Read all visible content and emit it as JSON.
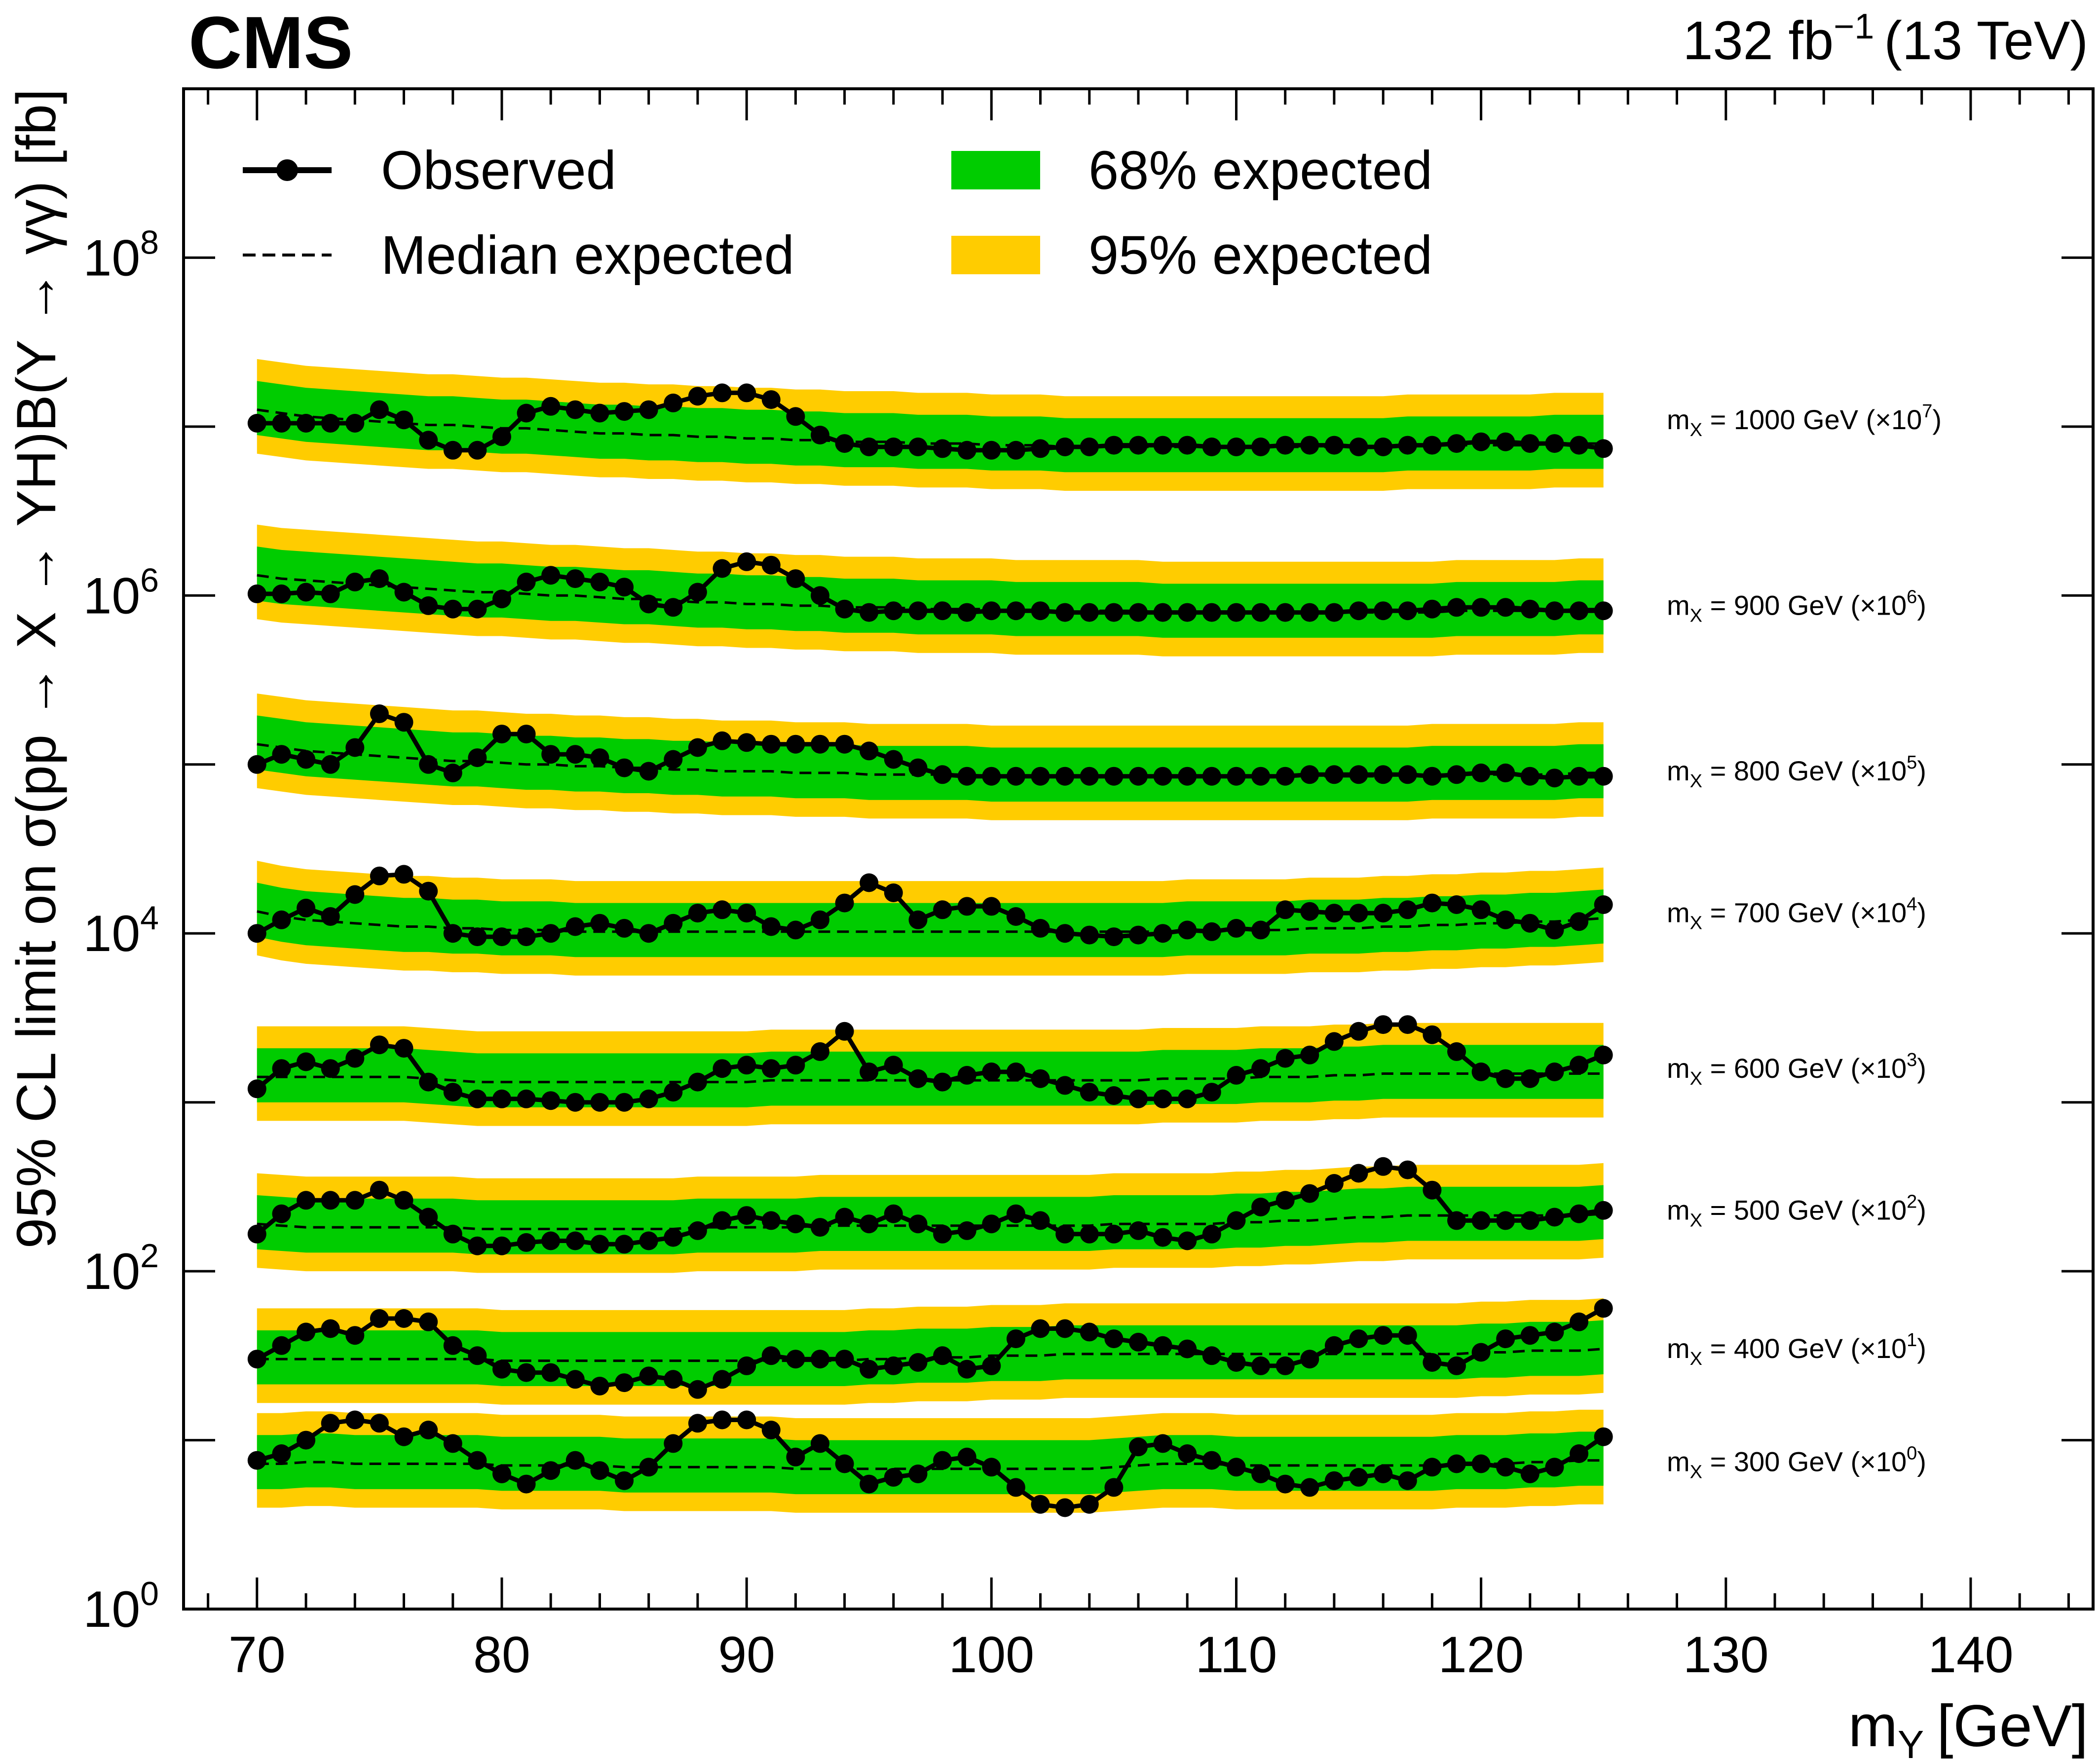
{
  "colors": {
    "band68": "#00cc00",
    "band95": "#ffcc00",
    "observed": "#000000",
    "expected": "#000000"
  },
  "chart_data": {
    "type": "line",
    "experiment": "CMS",
    "lumi_label": "132 fb",
    "lumi_exp": "−1",
    "energy_label": "(13 TeV)",
    "xlabel_main": "m",
    "xlabel_sub": "Y",
    "xlabel_unit": "[GeV]",
    "ylabel": "95% CL limit on σ(pp → X → YH)B(Y → γγ) [fb]",
    "xlim": [
      67,
      145
    ],
    "ylim_log10": [
      0,
      9
    ],
    "y_scale": "log",
    "x_ticks": [
      70,
      80,
      90,
      100,
      110,
      120,
      130,
      140
    ],
    "y_ticks": [
      {
        "base": "10",
        "exp": "0",
        "value": 0
      },
      {
        "base": "10",
        "exp": "2",
        "value": 2
      },
      {
        "base": "10",
        "exp": "4",
        "value": 4
      },
      {
        "base": "10",
        "exp": "6",
        "value": 6
      },
      {
        "base": "10",
        "exp": "8",
        "value": 8
      }
    ],
    "legend": {
      "position": "top-left",
      "observed": "Observed",
      "median": "Median expected",
      "band68": "68% expected",
      "band95": "95% expected"
    },
    "x_points": [
      70,
      71,
      72,
      73,
      74,
      75,
      76,
      77,
      78,
      79,
      80,
      81,
      82,
      83,
      84,
      85,
      86,
      87,
      88,
      89,
      90,
      91,
      92,
      93,
      94,
      95,
      96,
      97,
      98,
      99,
      100,
      101,
      102,
      103,
      104,
      105,
      106,
      107,
      108,
      109,
      110,
      111,
      112,
      113,
      114,
      115,
      116,
      117,
      118,
      119,
      120,
      121,
      122,
      123,
      124,
      125
    ],
    "series": [
      {
        "label_main": "m",
        "label_sub": "X",
        "label_rest": " = 1000 GeV (×10",
        "label_exp": "7",
        "label_close": ")",
        "label_log10": 7.05,
        "observed": [
          7.02,
          7.02,
          7.02,
          7.02,
          7.02,
          7.1,
          7.04,
          6.92,
          6.86,
          6.86,
          6.94,
          7.08,
          7.12,
          7.1,
          7.08,
          7.09,
          7.1,
          7.14,
          7.18,
          7.2,
          7.2,
          7.16,
          7.06,
          6.95,
          6.9,
          6.88,
          6.88,
          6.88,
          6.87,
          6.86,
          6.86,
          6.86,
          6.87,
          6.88,
          6.88,
          6.89,
          6.89,
          6.89,
          6.89,
          6.88,
          6.88,
          6.88,
          6.89,
          6.89,
          6.89,
          6.88,
          6.88,
          6.89,
          6.89,
          6.9,
          6.91,
          6.91,
          6.9,
          6.9,
          6.89,
          6.87
        ],
        "median": [
          7.1,
          7.08,
          7.06,
          7.05,
          7.04,
          7.03,
          7.02,
          7.01,
          7.01,
          7.0,
          6.99,
          6.99,
          6.98,
          6.97,
          6.96,
          6.96,
          6.95,
          6.95,
          6.94,
          6.94,
          6.93,
          6.93,
          6.92,
          6.92,
          6.91,
          6.91,
          6.91,
          6.9,
          6.9,
          6.9,
          6.89,
          6.89,
          6.89,
          6.88,
          6.88,
          6.88,
          6.88,
          6.88,
          6.88,
          6.88,
          6.88,
          6.88,
          6.88,
          6.88,
          6.88,
          6.88,
          6.88,
          6.89,
          6.89,
          6.89,
          6.89,
          6.89,
          6.89,
          6.9,
          6.9,
          6.9
        ]
      },
      {
        "label_main": "m",
        "label_sub": "X",
        "label_rest": " = 900 GeV (×10",
        "label_exp": "6",
        "label_close": ")",
        "label_log10": 5.95,
        "observed": [
          6.01,
          6.01,
          6.02,
          6.01,
          6.08,
          6.1,
          6.02,
          5.94,
          5.92,
          5.92,
          5.98,
          6.08,
          6.12,
          6.1,
          6.08,
          6.05,
          5.95,
          5.93,
          6.02,
          6.16,
          6.2,
          6.18,
          6.1,
          6.0,
          5.92,
          5.9,
          5.91,
          5.91,
          5.91,
          5.9,
          5.91,
          5.91,
          5.91,
          5.9,
          5.9,
          5.9,
          5.9,
          5.9,
          5.9,
          5.9,
          5.9,
          5.9,
          5.9,
          5.9,
          5.9,
          5.91,
          5.91,
          5.91,
          5.92,
          5.93,
          5.93,
          5.93,
          5.92,
          5.91,
          5.91,
          5.91
        ],
        "median": [
          6.12,
          6.1,
          6.09,
          6.08,
          6.07,
          6.06,
          6.05,
          6.04,
          6.03,
          6.02,
          6.02,
          6.01,
          6.0,
          6.0,
          5.99,
          5.98,
          5.98,
          5.97,
          5.96,
          5.96,
          5.95,
          5.95,
          5.94,
          5.94,
          5.93,
          5.93,
          5.93,
          5.92,
          5.92,
          5.92,
          5.92,
          5.91,
          5.91,
          5.91,
          5.91,
          5.91,
          5.91,
          5.9,
          5.9,
          5.9,
          5.9,
          5.9,
          5.9,
          5.9,
          5.9,
          5.9,
          5.9,
          5.9,
          5.9,
          5.91,
          5.91,
          5.91,
          5.91,
          5.91,
          5.92,
          5.92
        ]
      },
      {
        "label_main": "m",
        "label_sub": "X",
        "label_rest": " = 800 GeV (×10",
        "label_exp": "5",
        "label_close": ")",
        "label_log10": 4.97,
        "observed": [
          5.0,
          5.06,
          5.03,
          5.0,
          5.1,
          5.3,
          5.25,
          5.0,
          4.95,
          5.04,
          5.18,
          5.18,
          5.06,
          5.06,
          5.04,
          4.98,
          4.96,
          5.03,
          5.1,
          5.14,
          5.13,
          5.12,
          5.12,
          5.12,
          5.12,
          5.08,
          5.03,
          4.98,
          4.94,
          4.93,
          4.93,
          4.93,
          4.93,
          4.93,
          4.93,
          4.93,
          4.93,
          4.93,
          4.93,
          4.93,
          4.93,
          4.93,
          4.93,
          4.94,
          4.94,
          4.94,
          4.94,
          4.94,
          4.93,
          4.94,
          4.95,
          4.95,
          4.93,
          4.92,
          4.93,
          4.93
        ],
        "median": [
          5.12,
          5.1,
          5.08,
          5.07,
          5.06,
          5.05,
          5.04,
          5.03,
          5.02,
          5.02,
          5.01,
          5.0,
          5.0,
          4.99,
          4.99,
          4.98,
          4.98,
          4.97,
          4.97,
          4.96,
          4.96,
          4.96,
          4.95,
          4.95,
          4.95,
          4.94,
          4.94,
          4.94,
          4.94,
          4.94,
          4.93,
          4.93,
          4.93,
          4.93,
          4.93,
          4.93,
          4.93,
          4.93,
          4.93,
          4.93,
          4.93,
          4.93,
          4.93,
          4.93,
          4.93,
          4.93,
          4.93,
          4.93,
          4.94,
          4.94,
          4.94,
          4.94,
          4.94,
          4.94,
          4.95,
          4.95
        ]
      },
      {
        "label_main": "m",
        "label_sub": "X",
        "label_rest": " = 700 GeV (×10",
        "label_exp": "4",
        "label_close": ")",
        "label_log10": 4.13,
        "observed": [
          4.0,
          4.08,
          4.15,
          4.1,
          4.23,
          4.34,
          4.35,
          4.25,
          4.0,
          3.98,
          3.98,
          3.98,
          4.0,
          4.04,
          4.06,
          4.03,
          4.0,
          4.06,
          4.12,
          4.14,
          4.12,
          4.04,
          4.02,
          4.08,
          4.18,
          4.3,
          4.24,
          4.08,
          4.14,
          4.16,
          4.16,
          4.1,
          4.03,
          4.0,
          3.99,
          3.98,
          3.99,
          4.0,
          4.02,
          4.01,
          4.03,
          4.02,
          4.14,
          4.13,
          4.12,
          4.12,
          4.12,
          4.14,
          4.18,
          4.17,
          4.14,
          4.08,
          4.06,
          4.02,
          4.07,
          4.17
        ],
        "median": [
          4.13,
          4.1,
          4.08,
          4.07,
          4.06,
          4.05,
          4.04,
          4.04,
          4.03,
          4.03,
          4.02,
          4.02,
          4.02,
          4.01,
          4.01,
          4.01,
          4.01,
          4.01,
          4.01,
          4.01,
          4.01,
          4.01,
          4.01,
          4.01,
          4.01,
          4.01,
          4.01,
          4.01,
          4.01,
          4.01,
          4.01,
          4.01,
          4.01,
          4.01,
          4.01,
          4.01,
          4.01,
          4.01,
          4.02,
          4.02,
          4.02,
          4.02,
          4.02,
          4.03,
          4.03,
          4.03,
          4.04,
          4.04,
          4.05,
          4.05,
          4.06,
          4.06,
          4.07,
          4.07,
          4.08,
          4.09
        ]
      },
      {
        "label_main": "m",
        "label_sub": "X",
        "label_rest": " = 600 GeV (×10",
        "label_exp": "3",
        "label_close": ")",
        "label_log10": 3.21,
        "observed": [
          3.08,
          3.2,
          3.24,
          3.2,
          3.26,
          3.34,
          3.32,
          3.12,
          3.06,
          3.02,
          3.02,
          3.02,
          3.01,
          3.0,
          3.0,
          3.0,
          3.02,
          3.06,
          3.12,
          3.2,
          3.22,
          3.2,
          3.22,
          3.3,
          3.42,
          3.18,
          3.22,
          3.14,
          3.12,
          3.16,
          3.18,
          3.18,
          3.14,
          3.1,
          3.06,
          3.04,
          3.02,
          3.02,
          3.02,
          3.06,
          3.16,
          3.2,
          3.26,
          3.28,
          3.36,
          3.42,
          3.46,
          3.46,
          3.4,
          3.3,
          3.18,
          3.14,
          3.14,
          3.18,
          3.22,
          3.28
        ],
        "median": [
          3.15,
          3.15,
          3.15,
          3.15,
          3.15,
          3.15,
          3.15,
          3.14,
          3.13,
          3.12,
          3.12,
          3.12,
          3.12,
          3.12,
          3.12,
          3.12,
          3.12,
          3.12,
          3.12,
          3.12,
          3.12,
          3.13,
          3.13,
          3.13,
          3.13,
          3.13,
          3.13,
          3.13,
          3.13,
          3.13,
          3.13,
          3.13,
          3.13,
          3.13,
          3.13,
          3.13,
          3.13,
          3.14,
          3.14,
          3.14,
          3.14,
          3.15,
          3.15,
          3.15,
          3.16,
          3.16,
          3.17,
          3.17,
          3.17,
          3.17,
          3.17,
          3.17,
          3.17,
          3.17,
          3.17,
          3.17
        ]
      },
      {
        "label_main": "m",
        "label_sub": "X",
        "label_rest": " = 500 GeV (×10",
        "label_exp": "2",
        "label_close": ")",
        "label_log10": 2.37,
        "observed": [
          2.22,
          2.34,
          2.42,
          2.42,
          2.42,
          2.48,
          2.42,
          2.32,
          2.22,
          2.15,
          2.15,
          2.17,
          2.18,
          2.18,
          2.16,
          2.16,
          2.18,
          2.2,
          2.24,
          2.3,
          2.33,
          2.3,
          2.28,
          2.26,
          2.32,
          2.28,
          2.34,
          2.28,
          2.22,
          2.24,
          2.28,
          2.34,
          2.3,
          2.22,
          2.22,
          2.22,
          2.24,
          2.2,
          2.18,
          2.22,
          2.3,
          2.38,
          2.42,
          2.46,
          2.52,
          2.58,
          2.62,
          2.6,
          2.48,
          2.3,
          2.3,
          2.3,
          2.3,
          2.32,
          2.34,
          2.36
        ],
        "median": [
          2.28,
          2.27,
          2.26,
          2.26,
          2.26,
          2.26,
          2.26,
          2.26,
          2.26,
          2.25,
          2.25,
          2.25,
          2.25,
          2.25,
          2.25,
          2.25,
          2.25,
          2.25,
          2.26,
          2.26,
          2.26,
          2.26,
          2.26,
          2.27,
          2.27,
          2.27,
          2.27,
          2.27,
          2.27,
          2.27,
          2.27,
          2.27,
          2.27,
          2.27,
          2.27,
          2.28,
          2.28,
          2.28,
          2.28,
          2.28,
          2.29,
          2.29,
          2.3,
          2.3,
          2.31,
          2.32,
          2.32,
          2.33,
          2.33,
          2.33,
          2.33,
          2.33,
          2.33,
          2.33,
          2.33,
          2.34
        ]
      },
      {
        "label_main": "m",
        "label_sub": "X",
        "label_rest": " = 400 GeV (×10",
        "label_exp": "1",
        "label_close": ")",
        "label_log10": 1.55,
        "observed": [
          1.48,
          1.56,
          1.64,
          1.66,
          1.62,
          1.72,
          1.72,
          1.7,
          1.56,
          1.5,
          1.42,
          1.4,
          1.4,
          1.36,
          1.32,
          1.34,
          1.38,
          1.36,
          1.3,
          1.36,
          1.44,
          1.5,
          1.48,
          1.48,
          1.48,
          1.42,
          1.44,
          1.46,
          1.5,
          1.42,
          1.44,
          1.6,
          1.66,
          1.66,
          1.64,
          1.6,
          1.58,
          1.56,
          1.54,
          1.5,
          1.46,
          1.44,
          1.44,
          1.48,
          1.56,
          1.6,
          1.62,
          1.62,
          1.46,
          1.44,
          1.52,
          1.6,
          1.62,
          1.64,
          1.7,
          1.78
        ],
        "median": [
          1.48,
          1.48,
          1.48,
          1.48,
          1.48,
          1.48,
          1.48,
          1.48,
          1.48,
          1.48,
          1.47,
          1.47,
          1.47,
          1.47,
          1.47,
          1.47,
          1.47,
          1.47,
          1.47,
          1.47,
          1.47,
          1.47,
          1.47,
          1.47,
          1.47,
          1.48,
          1.48,
          1.49,
          1.49,
          1.49,
          1.5,
          1.5,
          1.5,
          1.51,
          1.51,
          1.51,
          1.51,
          1.51,
          1.51,
          1.51,
          1.51,
          1.51,
          1.51,
          1.51,
          1.51,
          1.51,
          1.51,
          1.51,
          1.51,
          1.51,
          1.52,
          1.52,
          1.53,
          1.53,
          1.53,
          1.54
        ]
      },
      {
        "label_main": "m",
        "label_sub": "X",
        "label_rest": " = 300 GeV (×10",
        "label_exp": "0",
        "label_close": ")",
        "label_log10": 0.88,
        "observed": [
          0.88,
          0.92,
          1.0,
          1.1,
          1.12,
          1.1,
          1.02,
          1.06,
          0.98,
          0.88,
          0.8,
          0.74,
          0.82,
          0.88,
          0.82,
          0.76,
          0.84,
          0.98,
          1.1,
          1.12,
          1.12,
          1.06,
          0.9,
          0.98,
          0.86,
          0.74,
          0.78,
          0.8,
          0.88,
          0.9,
          0.84,
          0.72,
          0.62,
          0.6,
          0.62,
          0.72,
          0.96,
          0.98,
          0.92,
          0.88,
          0.84,
          0.8,
          0.74,
          0.72,
          0.76,
          0.78,
          0.8,
          0.76,
          0.84,
          0.86,
          0.86,
          0.84,
          0.8,
          0.84,
          0.92,
          1.02
        ],
        "median": [
          0.86,
          0.86,
          0.87,
          0.87,
          0.86,
          0.86,
          0.86,
          0.86,
          0.86,
          0.86,
          0.85,
          0.85,
          0.85,
          0.85,
          0.85,
          0.84,
          0.84,
          0.84,
          0.84,
          0.84,
          0.84,
          0.84,
          0.83,
          0.83,
          0.83,
          0.83,
          0.83,
          0.83,
          0.83,
          0.83,
          0.83,
          0.83,
          0.83,
          0.83,
          0.83,
          0.84,
          0.85,
          0.86,
          0.86,
          0.86,
          0.85,
          0.85,
          0.85,
          0.85,
          0.85,
          0.85,
          0.85,
          0.85,
          0.85,
          0.86,
          0.86,
          0.86,
          0.87,
          0.87,
          0.88,
          0.88
        ]
      }
    ]
  }
}
